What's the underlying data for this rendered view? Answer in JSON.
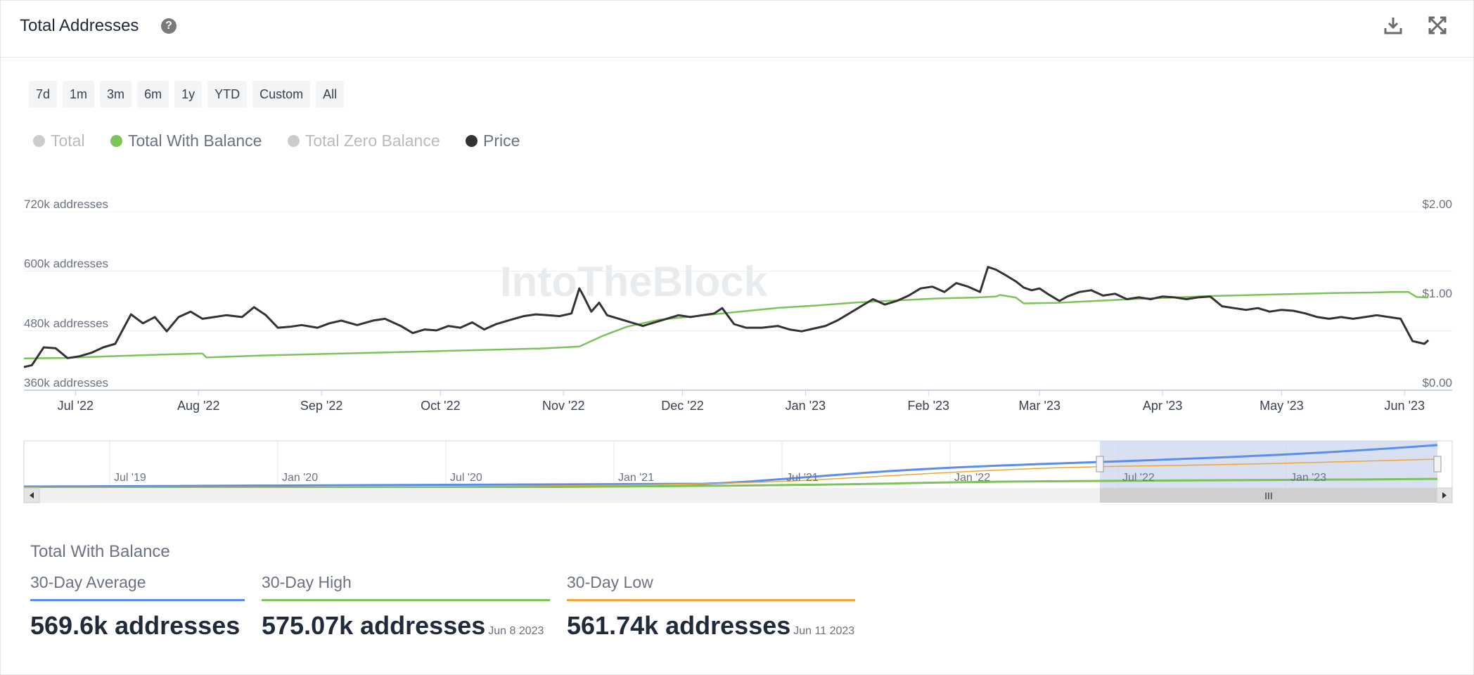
{
  "header": {
    "title": "Total Addresses",
    "help_icon": "question-circle-icon",
    "download_icon": "download-icon",
    "fullscreen_icon": "fullscreen-icon"
  },
  "range_buttons": [
    "7d",
    "1m",
    "3m",
    "6m",
    "1y",
    "YTD",
    "Custom",
    "All"
  ],
  "legend": [
    {
      "label": "Total",
      "color": "#cccccc",
      "active": false
    },
    {
      "label": "Total With Balance",
      "color": "#7cc45a",
      "active": true
    },
    {
      "label": "Total Zero Balance",
      "color": "#cccccc",
      "active": false
    },
    {
      "label": "Price",
      "color": "#333333",
      "active": true
    }
  ],
  "watermark": "IntoTheBlock",
  "chart_data": {
    "type": "line",
    "title": "Total Addresses",
    "y_left_ticks": [
      "720k addresses",
      "600k addresses",
      "480k addresses",
      "360k addresses"
    ],
    "y_left_range": [
      360000,
      720000
    ],
    "y_right_ticks": [
      "$2.00",
      "$1.00",
      "$0.00"
    ],
    "y_right_range": [
      0,
      2
    ],
    "x_ticks": [
      "Jul '22",
      "Aug '22",
      "Sep '22",
      "Oct '22",
      "Nov '22",
      "Dec '22",
      "Jan '23",
      "Feb '23",
      "Mar '23",
      "Apr '23",
      "May '23",
      "Jun '23"
    ],
    "x_range_days": [
      0,
      360
    ],
    "x_tick_days": [
      13,
      44,
      75,
      105,
      136,
      166,
      197,
      228,
      256,
      287,
      317,
      348
    ],
    "series": [
      {
        "name": "Total With Balance",
        "color": "#7cc45a",
        "axis": "left",
        "points": [
          [
            0,
            424000
          ],
          [
            10,
            425000
          ],
          [
            20,
            428000
          ],
          [
            35,
            432000
          ],
          [
            45,
            434000
          ],
          [
            46,
            426000
          ],
          [
            60,
            430000
          ],
          [
            80,
            434000
          ],
          [
            100,
            438000
          ],
          [
            120,
            442000
          ],
          [
            130,
            444000
          ],
          [
            140,
            448000
          ],
          [
            146,
            470000
          ],
          [
            152,
            488000
          ],
          [
            160,
            502000
          ],
          [
            170,
            510000
          ],
          [
            180,
            518000
          ],
          [
            190,
            526000
          ],
          [
            200,
            531000
          ],
          [
            210,
            537000
          ],
          [
            220,
            541000
          ],
          [
            230,
            545000
          ],
          [
            240,
            547000
          ],
          [
            245,
            549000
          ],
          [
            246,
            552000
          ],
          [
            250,
            547000
          ],
          [
            252,
            535000
          ],
          [
            260,
            536000
          ],
          [
            270,
            540000
          ],
          [
            280,
            544000
          ],
          [
            290,
            547000
          ],
          [
            300,
            550000
          ],
          [
            310,
            552000
          ],
          [
            320,
            554000
          ],
          [
            330,
            556000
          ],
          [
            340,
            557000
          ],
          [
            345,
            558000
          ],
          [
            349,
            558000
          ],
          [
            351,
            548000
          ],
          [
            354,
            547000
          ]
        ]
      },
      {
        "name": "Price",
        "color": "#333333",
        "axis": "right",
        "points": [
          [
            0,
            0.26
          ],
          [
            2,
            0.28
          ],
          [
            5,
            0.48
          ],
          [
            8,
            0.47
          ],
          [
            11,
            0.36
          ],
          [
            14,
            0.38
          ],
          [
            17,
            0.42
          ],
          [
            20,
            0.48
          ],
          [
            23,
            0.52
          ],
          [
            27,
            0.85
          ],
          [
            30,
            0.75
          ],
          [
            33,
            0.82
          ],
          [
            36,
            0.66
          ],
          [
            39,
            0.82
          ],
          [
            42,
            0.88
          ],
          [
            45,
            0.8
          ],
          [
            48,
            0.82
          ],
          [
            51,
            0.84
          ],
          [
            55,
            0.82
          ],
          [
            58,
            0.93
          ],
          [
            61,
            0.84
          ],
          [
            64,
            0.7
          ],
          [
            67,
            0.71
          ],
          [
            70,
            0.73
          ],
          [
            74,
            0.7
          ],
          [
            77,
            0.75
          ],
          [
            80,
            0.78
          ],
          [
            84,
            0.73
          ],
          [
            88,
            0.78
          ],
          [
            91,
            0.8
          ],
          [
            95,
            0.72
          ],
          [
            98,
            0.64
          ],
          [
            101,
            0.68
          ],
          [
            104,
            0.67
          ],
          [
            107,
            0.72
          ],
          [
            110,
            0.7
          ],
          [
            113,
            0.76
          ],
          [
            116,
            0.68
          ],
          [
            119,
            0.74
          ],
          [
            122,
            0.78
          ],
          [
            126,
            0.83
          ],
          [
            129,
            0.85
          ],
          [
            132,
            0.84
          ],
          [
            135,
            0.83
          ],
          [
            138,
            0.86
          ],
          [
            140,
            1.14
          ],
          [
            141,
            1.06
          ],
          [
            143,
            0.88
          ],
          [
            145,
            0.98
          ],
          [
            147,
            0.84
          ],
          [
            150,
            0.8
          ],
          [
            153,
            0.76
          ],
          [
            156,
            0.72
          ],
          [
            159,
            0.76
          ],
          [
            162,
            0.8
          ],
          [
            165,
            0.84
          ],
          [
            168,
            0.82
          ],
          [
            171,
            0.84
          ],
          [
            174,
            0.86
          ],
          [
            176,
            0.92
          ],
          [
            179,
            0.74
          ],
          [
            182,
            0.7
          ],
          [
            186,
            0.7
          ],
          [
            190,
            0.72
          ],
          [
            193,
            0.68
          ],
          [
            196,
            0.66
          ],
          [
            199,
            0.69
          ],
          [
            202,
            0.72
          ],
          [
            205,
            0.78
          ],
          [
            208,
            0.86
          ],
          [
            211,
            0.94
          ],
          [
            214,
            1.02
          ],
          [
            217,
            0.96
          ],
          [
            220,
            1.0
          ],
          [
            223,
            1.06
          ],
          [
            226,
            1.14
          ],
          [
            229,
            1.16
          ],
          [
            232,
            1.1
          ],
          [
            235,
            1.2
          ],
          [
            238,
            1.16
          ],
          [
            241,
            1.1
          ],
          [
            243,
            1.38
          ],
          [
            245,
            1.35
          ],
          [
            247,
            1.3
          ],
          [
            250,
            1.22
          ],
          [
            252,
            1.15
          ],
          [
            254,
            1.12
          ],
          [
            256,
            1.14
          ],
          [
            258,
            1.08
          ],
          [
            261,
            1.0
          ],
          [
            263,
            1.05
          ],
          [
            266,
            1.1
          ],
          [
            269,
            1.12
          ],
          [
            272,
            1.06
          ],
          [
            275,
            1.08
          ],
          [
            278,
            1.02
          ],
          [
            281,
            1.04
          ],
          [
            284,
            1.02
          ],
          [
            287,
            1.05
          ],
          [
            290,
            1.04
          ],
          [
            293,
            1.02
          ],
          [
            296,
            1.04
          ],
          [
            299,
            1.05
          ],
          [
            302,
            0.94
          ],
          [
            305,
            0.92
          ],
          [
            308,
            0.9
          ],
          [
            311,
            0.92
          ],
          [
            314,
            0.88
          ],
          [
            317,
            0.9
          ],
          [
            320,
            0.89
          ],
          [
            323,
            0.86
          ],
          [
            326,
            0.82
          ],
          [
            329,
            0.8
          ],
          [
            332,
            0.82
          ],
          [
            335,
            0.8
          ],
          [
            338,
            0.82
          ],
          [
            341,
            0.84
          ],
          [
            344,
            0.82
          ],
          [
            347,
            0.8
          ],
          [
            350,
            0.55
          ],
          [
            353,
            0.52
          ],
          [
            354,
            0.56
          ]
        ]
      }
    ]
  },
  "navigator": {
    "labels": [
      "Jul '19",
      "Jan '20",
      "Jul '20",
      "Jan '21",
      "Jul '21",
      "Jan '22",
      "Jul '22",
      "Jan '23"
    ],
    "scrollbar_grip": "III"
  },
  "stats": {
    "title": "Total With Balance",
    "items": [
      {
        "label": "30-Day Average",
        "value": "569.6k addresses",
        "date": "",
        "color": "#5b8def"
      },
      {
        "label": "30-Day High",
        "value": "575.07k addresses",
        "date": "Jun 8 2023",
        "color": "#7cc45a"
      },
      {
        "label": "30-Day Low",
        "value": "561.74k addresses",
        "date": "Jun 11 2023",
        "color": "#f0a630"
      }
    ]
  }
}
